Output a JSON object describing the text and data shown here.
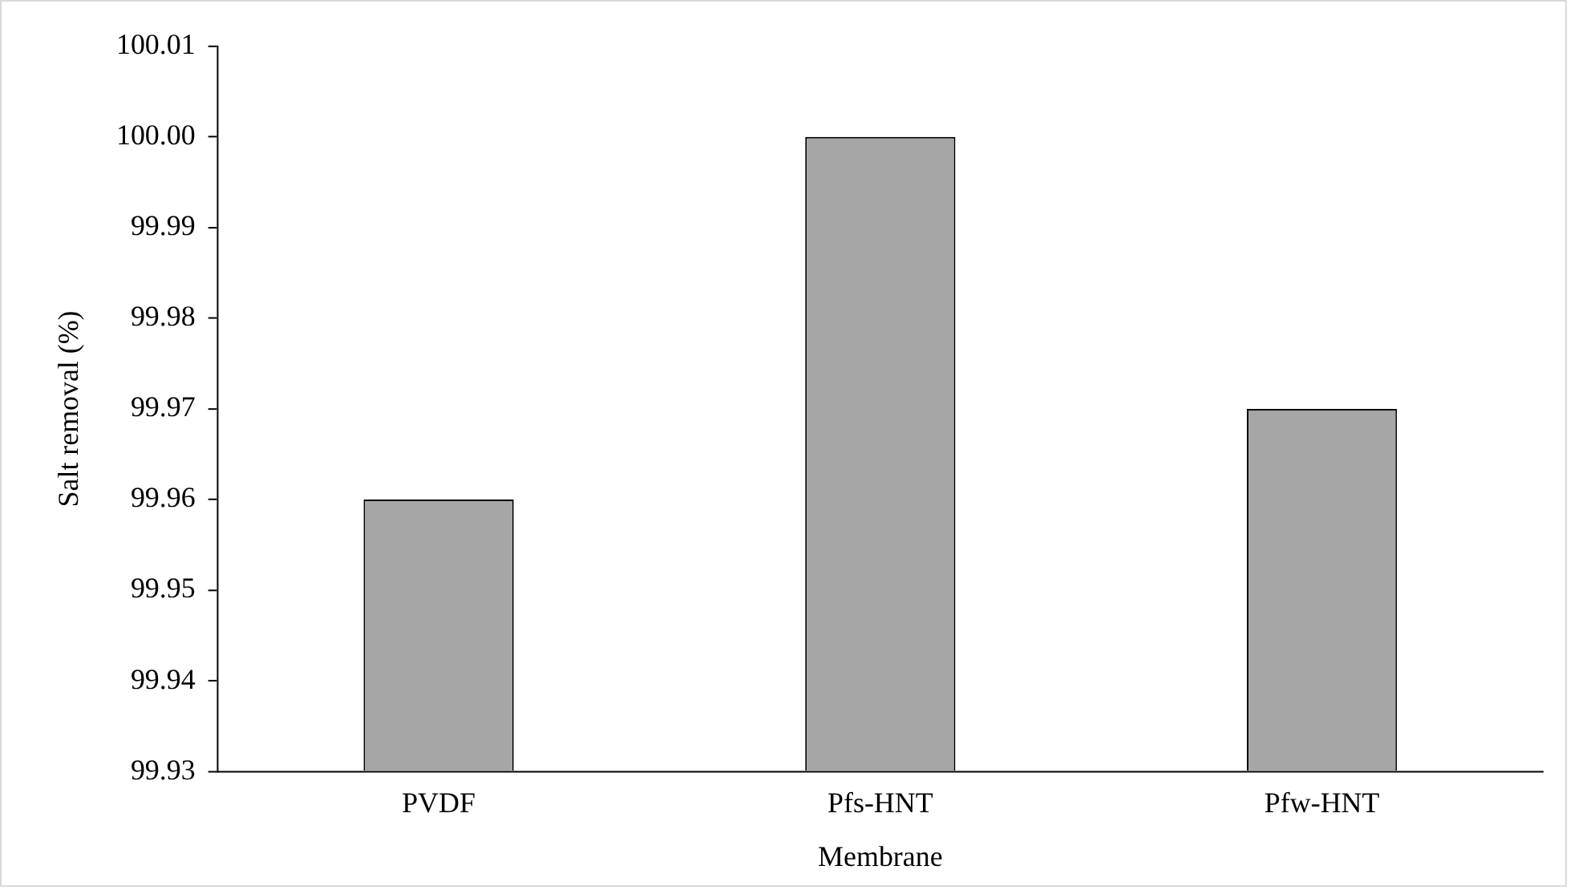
{
  "chart_data": {
    "type": "bar",
    "xlabel": "Membrane",
    "ylabel": "Salt removal (%)",
    "categories": [
      "PVDF",
      "Pfs-HNT",
      "Pfw-HNT"
    ],
    "values": [
      99.96,
      100.0,
      99.97
    ],
    "color": "#a6a6a6",
    "ylim": [
      99.93,
      100.01
    ],
    "yticks": [
      {
        "value": 99.93,
        "label": "99.93"
      },
      {
        "value": 99.94,
        "label": "99.94"
      },
      {
        "value": 99.95,
        "label": "99.95"
      },
      {
        "value": 99.96,
        "label": "99.96"
      },
      {
        "value": 99.97,
        "label": "99.97"
      },
      {
        "value": 99.98,
        "label": "99.98"
      },
      {
        "value": 99.99,
        "label": "99.99"
      },
      {
        "value": 100.0,
        "label": "100.00"
      },
      {
        "value": 100.01,
        "label": "100.01"
      }
    ],
    "grid": false,
    "legend": false
  }
}
